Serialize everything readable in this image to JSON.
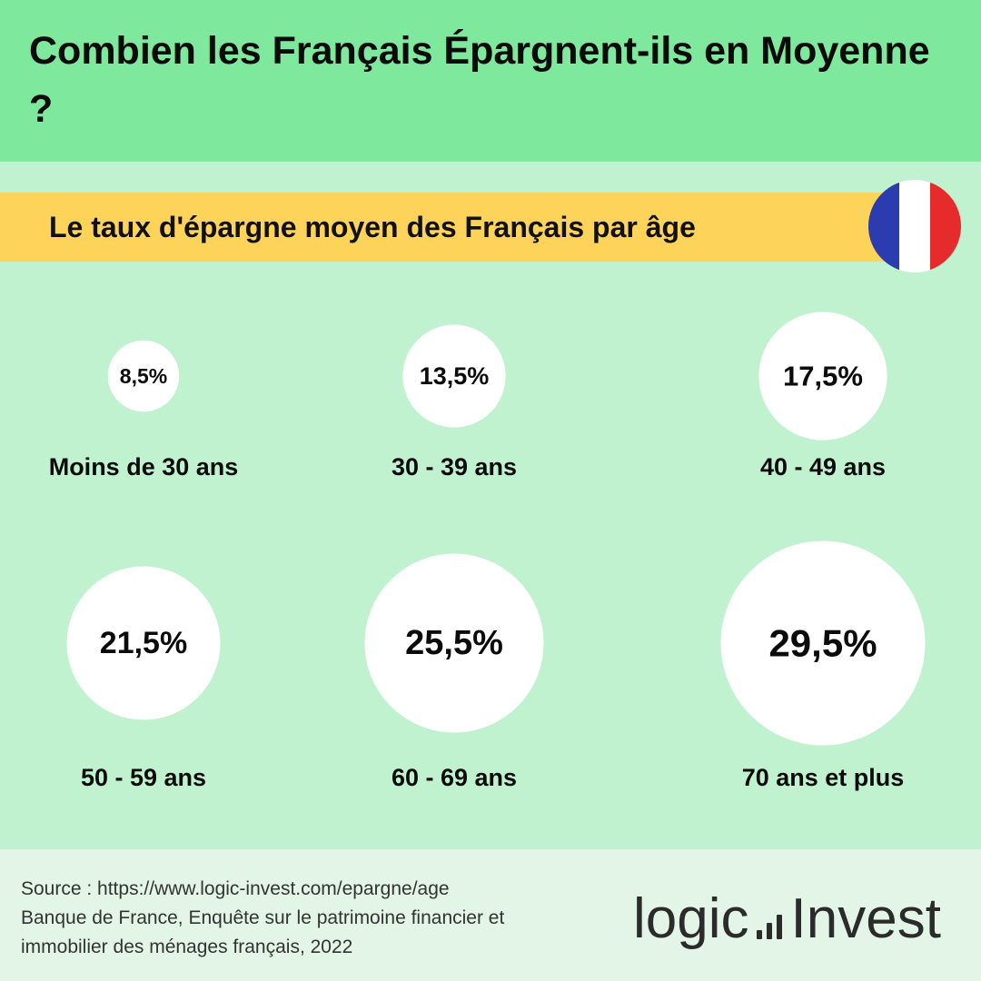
{
  "header": {
    "title": "Combien les Français Épargnent-ils en Moyenne ?"
  },
  "banner": {
    "subtitle": "Le taux d'épargne moyen des Français par âge"
  },
  "flag": {
    "colors": [
      "#2b3cb0",
      "#ffffff",
      "#e52b2b"
    ]
  },
  "chart_data": {
    "type": "bubble",
    "categories": [
      "Moins de 30 ans",
      "30 - 39 ans",
      "40 - 49 ans",
      "50 - 59 ans",
      "60 - 69 ans",
      "70 ans et plus"
    ],
    "values": [
      8.5,
      13.5,
      17.5,
      21.5,
      25.5,
      29.5
    ],
    "value_labels": [
      "8,5%",
      "13,5%",
      "17,5%",
      "21,5%",
      "25,5%",
      "29,5%"
    ],
    "unit": "%",
    "bubble_color": "#ffffff"
  },
  "footer": {
    "source_lines": [
      "Source : https://www.logic-invest.com/epargne/age",
      "Banque de France, Enquête sur le patrimoine financier et",
      "immobilier des ménages français, 2022"
    ],
    "logo_left": "logic",
    "logo_right": "Invest"
  }
}
